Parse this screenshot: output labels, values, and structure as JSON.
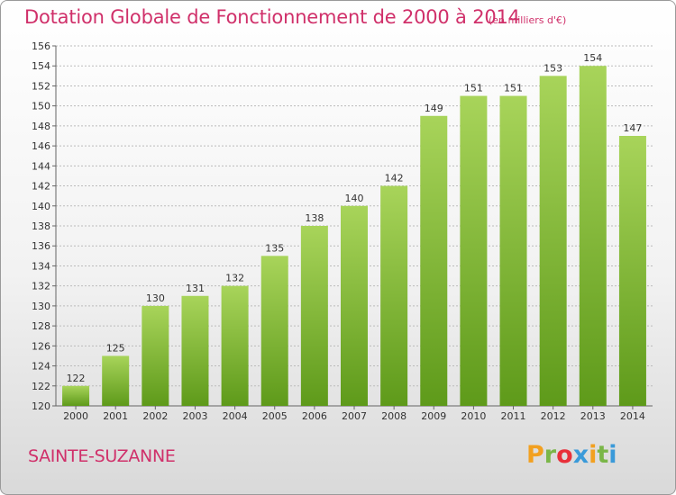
{
  "header": {
    "title": "Dotation Globale de Fonctionnement de 2000 à 2014",
    "unit": "(en milliers d'€)"
  },
  "footer": {
    "commune": "SAINTE-SUZANNE",
    "logo_letters": [
      "P",
      "r",
      "o",
      "x",
      "i",
      "t",
      "i"
    ],
    "logo_colors": [
      "#f2a020",
      "#7ab648",
      "#e8303a",
      "#3a9ad9",
      "#f2a020",
      "#7ab648",
      "#3a9ad9"
    ]
  },
  "colors": {
    "title": "#d0306a",
    "bar_top": "#a8d45a",
    "bar_bottom": "#5e9a1a",
    "grid": "#bbbbbb"
  },
  "chart_data": {
    "type": "bar",
    "title": "Dotation Globale de Fonctionnement de 2000 à 2014",
    "subtitle": "(en milliers d'€)",
    "categories": [
      "2000",
      "2001",
      "2002",
      "2003",
      "2004",
      "2005",
      "2006",
      "2007",
      "2008",
      "2009",
      "2010",
      "2011",
      "2012",
      "2013",
      "2014"
    ],
    "values": [
      122,
      125,
      130,
      131,
      132,
      135,
      138,
      140,
      142,
      149,
      151,
      151,
      153,
      154,
      147
    ],
    "ylim": [
      120,
      156
    ],
    "yticks": [
      120,
      122,
      124,
      126,
      128,
      130,
      132,
      134,
      136,
      138,
      140,
      142,
      144,
      146,
      148,
      150,
      152,
      154,
      156
    ],
    "grid": true,
    "data_labels": true
  }
}
